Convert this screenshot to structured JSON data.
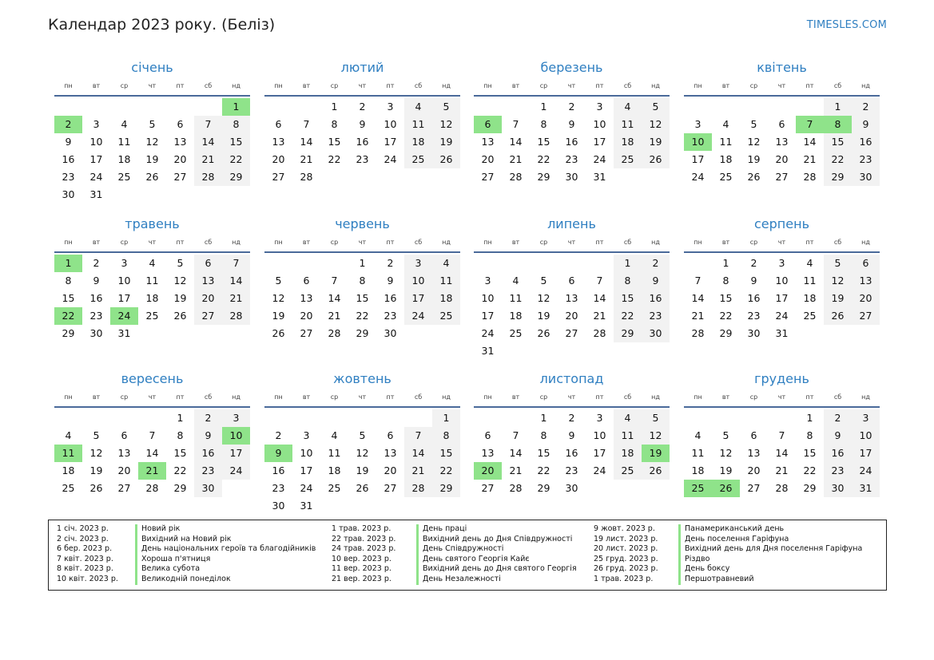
{
  "header": {
    "title": "Календар 2023 року. (Беліз)",
    "brand": "TIMESLES.COM"
  },
  "weekdays": [
    "пн",
    "вт",
    "ср",
    "чт",
    "пт",
    "сб",
    "нд"
  ],
  "months": [
    {
      "name": "січень",
      "offset": 6,
      "days": 31,
      "holidays": [
        1,
        2
      ]
    },
    {
      "name": "лютий",
      "offset": 2,
      "days": 28,
      "holidays": []
    },
    {
      "name": "березень",
      "offset": 2,
      "days": 31,
      "holidays": [
        6
      ]
    },
    {
      "name": "квітень",
      "offset": 5,
      "days": 30,
      "holidays": [
        7,
        8,
        10
      ]
    },
    {
      "name": "травень",
      "offset": 0,
      "days": 31,
      "holidays": [
        1,
        22,
        24
      ]
    },
    {
      "name": "червень",
      "offset": 3,
      "days": 30,
      "holidays": []
    },
    {
      "name": "липень",
      "offset": 5,
      "days": 31,
      "holidays": []
    },
    {
      "name": "серпень",
      "offset": 1,
      "days": 31,
      "holidays": []
    },
    {
      "name": "вересень",
      "offset": 4,
      "days": 30,
      "holidays": [
        10,
        11,
        21
      ]
    },
    {
      "name": "жовтень",
      "offset": 6,
      "days": 31,
      "holidays": [
        9
      ]
    },
    {
      "name": "листопад",
      "offset": 2,
      "days": 30,
      "holidays": [
        19,
        20
      ]
    },
    {
      "name": "грудень",
      "offset": 4,
      "days": 31,
      "holidays": [
        25,
        26
      ]
    }
  ],
  "legend": [
    [
      {
        "date": "1 січ. 2023 р.",
        "name": "Новий рік"
      },
      {
        "date": "2 січ. 2023 р.",
        "name": "Вихідний на Новий рік"
      },
      {
        "date": "6 бер. 2023 р.",
        "name": "День національних героїв та благодійників"
      },
      {
        "date": "7 квіт. 2023 р.",
        "name": "Хороша п'ятниця"
      },
      {
        "date": "8 квіт. 2023 р.",
        "name": "Велика субота"
      },
      {
        "date": "10 квіт. 2023 р.",
        "name": "Великодній понеділок"
      }
    ],
    [
      {
        "date": "1 трав. 2023 р.",
        "name": "День праці"
      },
      {
        "date": "22 трав. 2023 р.",
        "name": "Вихідний день до Дня Співдружності"
      },
      {
        "date": "24 трав. 2023 р.",
        "name": "День Співдружності"
      },
      {
        "date": "10 вер. 2023 р.",
        "name": "День святого Георгія Кайє"
      },
      {
        "date": "11 вер. 2023 р.",
        "name": "Вихідний день до Дня святого Георгія"
      },
      {
        "date": "21 вер. 2023 р.",
        "name": "День Незалежності"
      }
    ],
    [
      {
        "date": "9 жовт. 2023 р.",
        "name": "Панамериканський день"
      },
      {
        "date": "19 лист. 2023 р.",
        "name": "День поселення Гаріфуна"
      },
      {
        "date": "20 лист. 2023 р.",
        "name": "Вихідний день для Дня поселення Гаріфуна"
      },
      {
        "date": "25 груд. 2023 р.",
        "name": "Різдво"
      },
      {
        "date": "26 груд. 2023 р.",
        "name": "День боксу"
      },
      {
        "date": "1 трав. 2023 р.",
        "name": "Першотравневий"
      }
    ]
  ],
  "colors": {
    "accent": "#2f7fc1",
    "holiday": "#8fe38a",
    "weekend": "#f2f2f2",
    "rule": "#4a6a9a"
  }
}
